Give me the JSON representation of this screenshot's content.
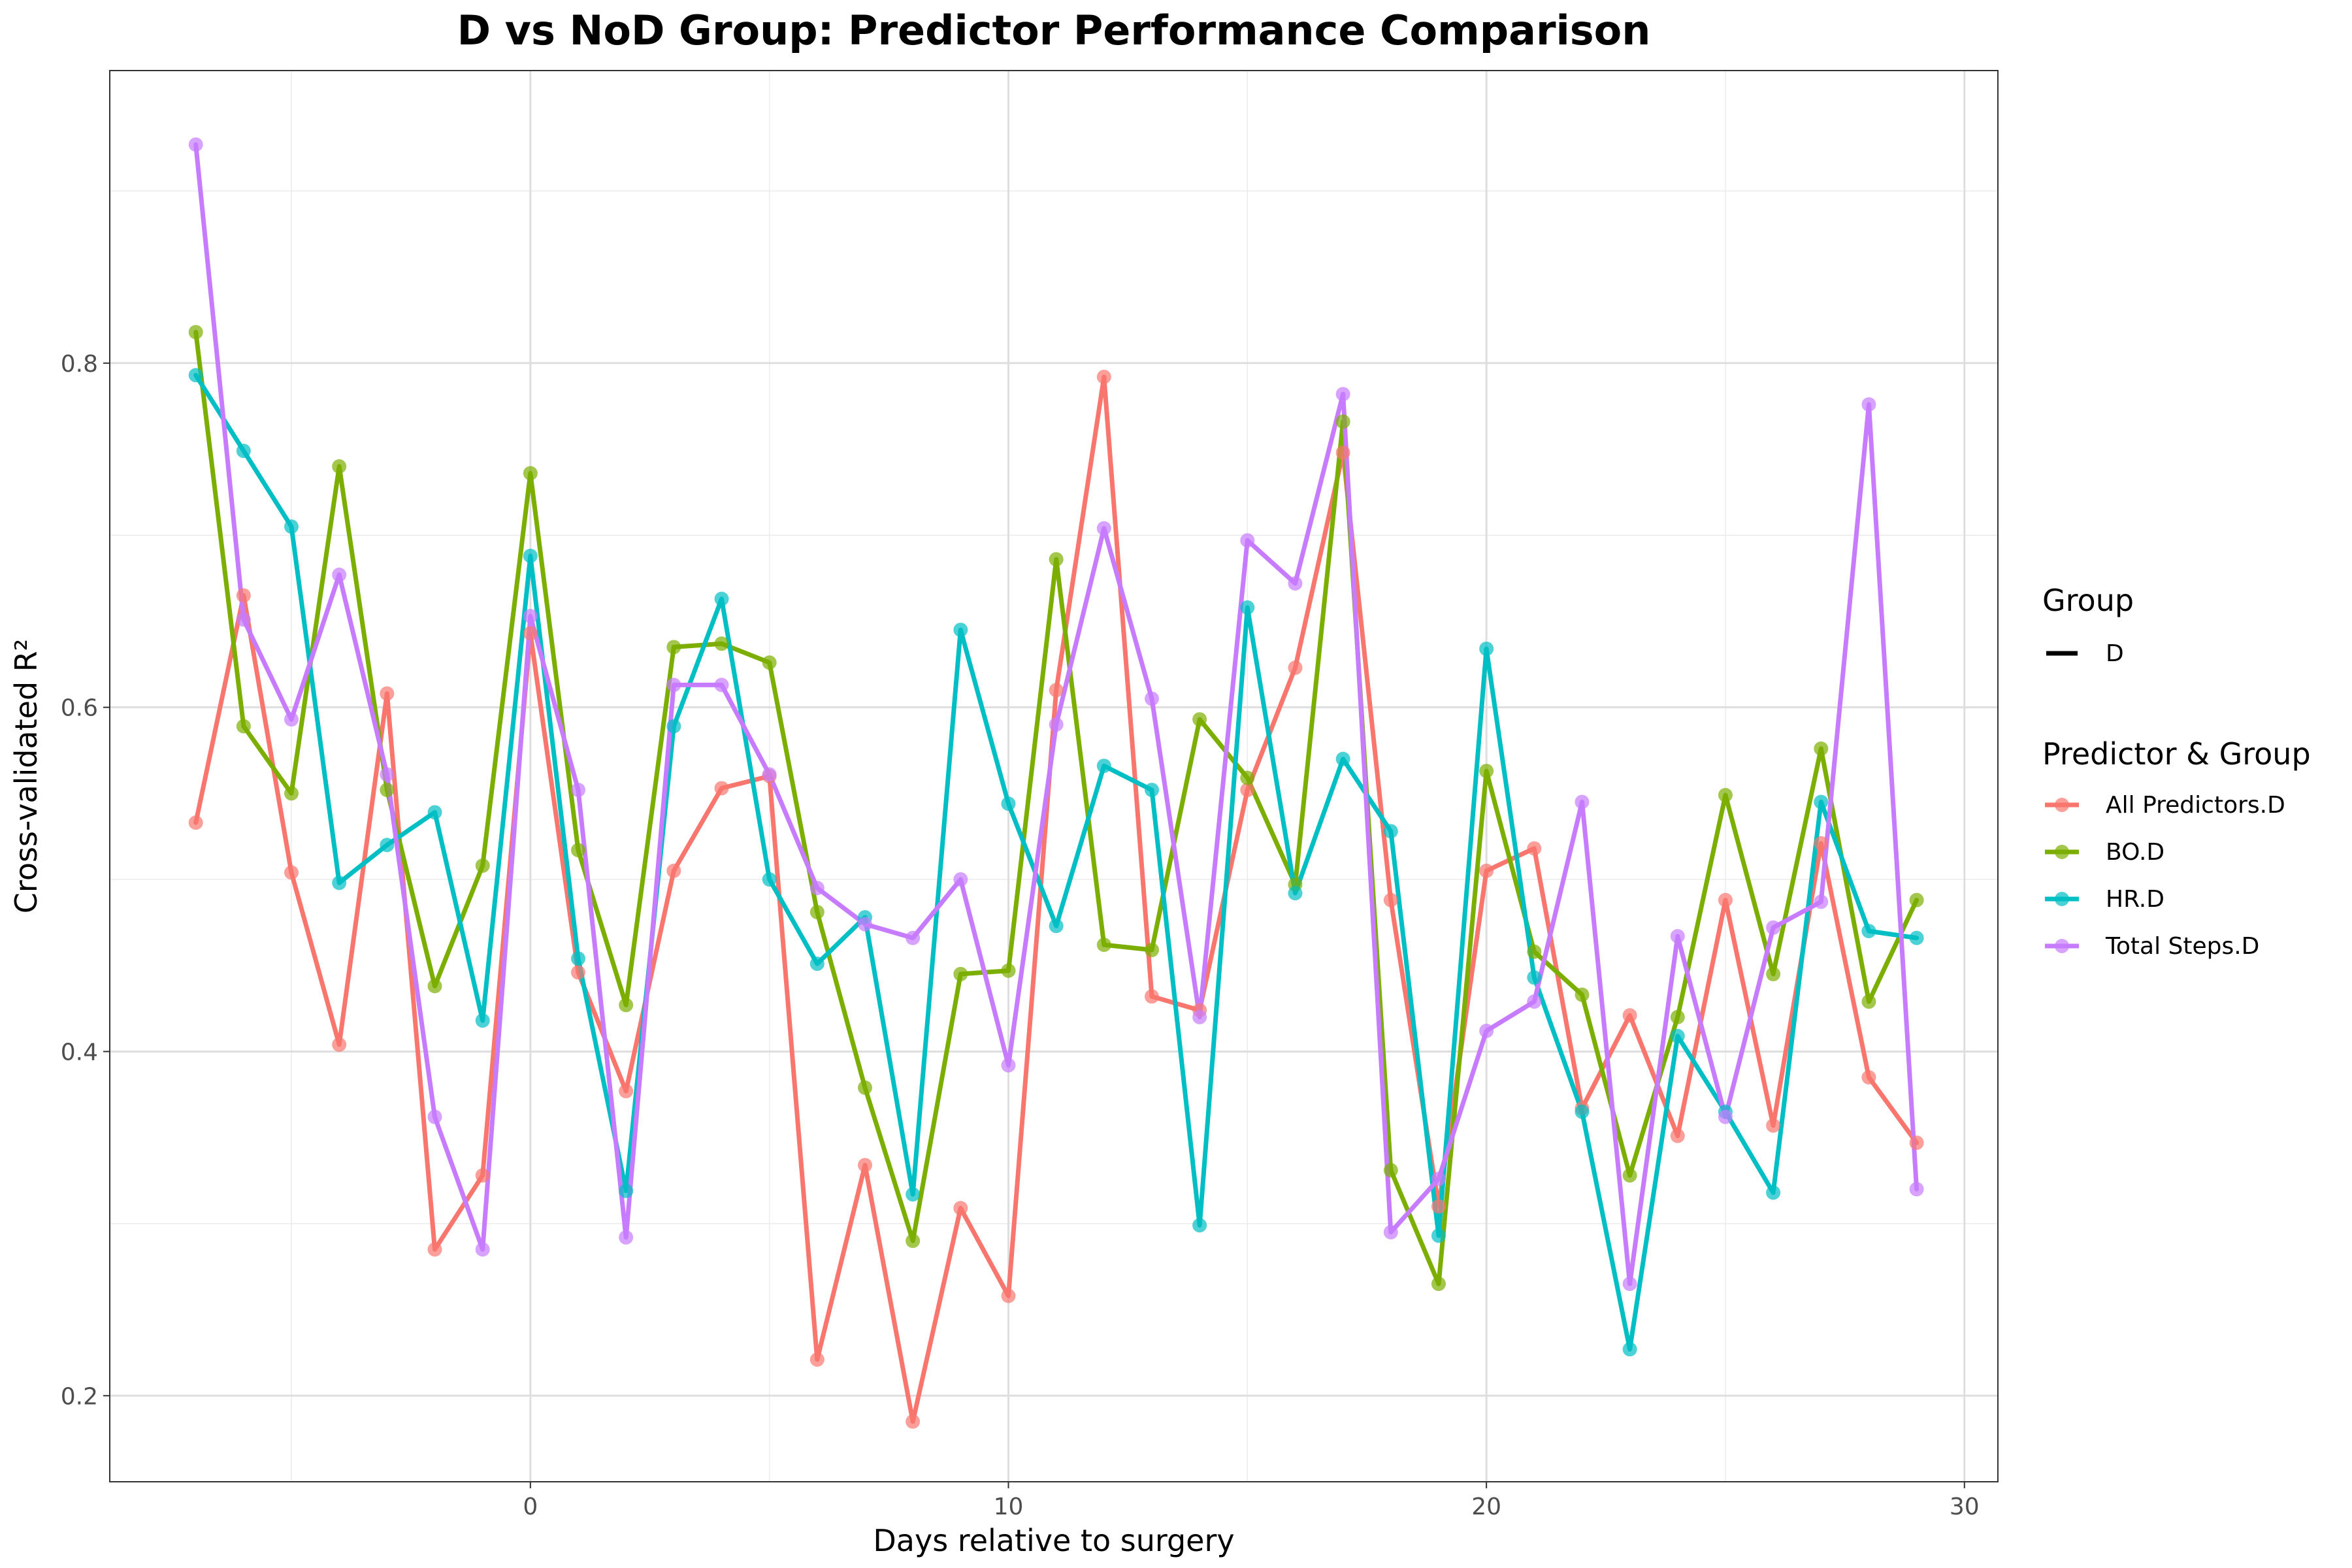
{
  "chart_data": {
    "type": "line",
    "title": "D vs NoD Group: Predictor Performance Comparison",
    "xlabel": "Days relative to surgery",
    "ylabel": "Cross-validated R²",
    "xlim": [
      -8.8,
      30.7
    ],
    "ylim": [
      0.15,
      0.97
    ],
    "x_ticks": [
      0,
      10,
      20,
      30
    ],
    "y_ticks": [
      0.2,
      0.4,
      0.6,
      0.8
    ],
    "y_tick_labels": [
      "0.2",
      "0.4",
      "0.6",
      "0.8"
    ],
    "grid": true,
    "legend_position": "right",
    "legend": {
      "group_title": "Group",
      "group_entries": [
        "D"
      ],
      "series_title": "Predictor & Group"
    },
    "x": [
      -7,
      -6,
      -5,
      -4,
      -3,
      -2,
      -1,
      0,
      1,
      2,
      3,
      4,
      5,
      6,
      7,
      8,
      9,
      10,
      11,
      12,
      13,
      14,
      15,
      16,
      17,
      18,
      19,
      20,
      21,
      22,
      23,
      24,
      25,
      26,
      27,
      28,
      29
    ],
    "series": [
      {
        "name": "All Predictors.D",
        "color": "#F8766D",
        "values": [
          0.533,
          0.665,
          0.504,
          0.404,
          0.608,
          0.285,
          0.328,
          0.643,
          0.446,
          0.377,
          0.505,
          0.553,
          0.56,
          0.221,
          0.334,
          0.185,
          0.309,
          0.258,
          0.61,
          0.792,
          0.432,
          0.424,
          0.552,
          0.623,
          0.748,
          0.488,
          0.31,
          0.505,
          0.518,
          0.367,
          0.421,
          0.351,
          0.488,
          0.357,
          0.521,
          0.385,
          0.347
        ]
      },
      {
        "name": "BO.D",
        "color": "#7CAE00",
        "values": [
          0.818,
          0.589,
          0.55,
          0.74,
          0.552,
          0.438,
          0.508,
          0.736,
          0.517,
          0.427,
          0.635,
          0.637,
          0.626,
          0.481,
          0.379,
          0.29,
          0.445,
          0.447,
          0.686,
          0.462,
          0.459,
          0.593,
          0.559,
          0.497,
          0.766,
          0.331,
          0.265,
          0.563,
          0.458,
          0.433,
          0.328,
          0.42,
          0.549,
          0.445,
          0.576,
          0.429,
          0.488
        ]
      },
      {
        "name": "HR.D",
        "color": "#00BFC4",
        "values": [
          0.793,
          0.749,
          0.705,
          0.498,
          0.52,
          0.539,
          0.418,
          0.688,
          0.454,
          0.319,
          0.589,
          0.663,
          0.5,
          0.451,
          0.478,
          0.317,
          0.645,
          0.544,
          0.473,
          0.566,
          0.552,
          0.299,
          0.658,
          0.492,
          0.57,
          0.528,
          0.293,
          0.634,
          0.443,
          0.365,
          0.227,
          0.409,
          0.365,
          0.318,
          0.545,
          0.47,
          0.466
        ]
      },
      {
        "name": "Total Steps.D",
        "color": "#C77CFF",
        "values": [
          0.927,
          0.651,
          0.593,
          0.677,
          0.561,
          0.362,
          0.285,
          0.653,
          0.552,
          0.292,
          0.613,
          0.613,
          0.561,
          0.495,
          0.474,
          0.466,
          0.5,
          0.392,
          0.59,
          0.704,
          0.605,
          0.42,
          0.697,
          0.672,
          0.782,
          0.295,
          0.326,
          0.412,
          0.429,
          0.545,
          0.265,
          0.467,
          0.362,
          0.472,
          0.487,
          0.776,
          0.32
        ]
      }
    ]
  }
}
